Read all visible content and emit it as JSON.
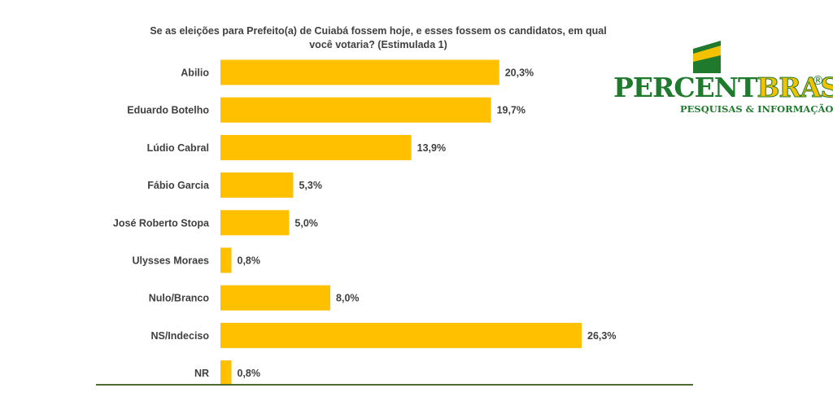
{
  "chart_data": {
    "type": "bar",
    "orientation": "horizontal",
    "title_lines": [
      "Se as eleições para Prefeito(a) de Cuiabá fossem hoje, e esses fossem os candidatos, em qual",
      "você votaria? (Estimulada 1)"
    ],
    "categories": [
      "Abilio",
      "Eduardo Botelho",
      "Lúdio Cabral",
      "Fábio Garcia",
      "José Roberto Stopa",
      "Ulysses Moraes",
      "Nulo/Branco",
      "NS/Indeciso",
      "NR"
    ],
    "values": [
      20.3,
      19.7,
      13.9,
      5.3,
      5.0,
      0.8,
      8.0,
      26.3,
      0.8
    ],
    "value_labels": [
      "20,3%",
      "19,7%",
      "13,9%",
      "5,3%",
      "5,0%",
      "0,8%",
      "8,0%",
      "26,3%",
      "0,8%"
    ],
    "bar_color": "#ffc000",
    "xlim": [
      0,
      26.3
    ],
    "grid": false,
    "legend": "none"
  },
  "logo": {
    "name_part1": "PERCENT",
    "name_part2": "BRASIL",
    "registered": "®",
    "tagline": "PESQUISAS & INFORMAÇÃO",
    "green": "#1f7a2e",
    "yellow": "#f2c200"
  }
}
